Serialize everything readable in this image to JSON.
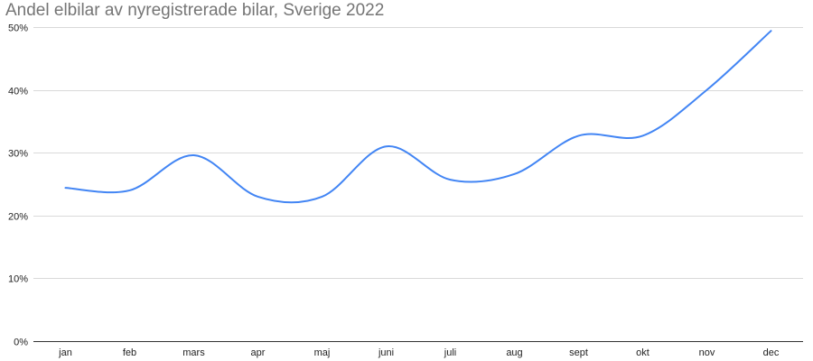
{
  "chart_data": {
    "type": "line",
    "title": "Andel elbilar av nyregistrerade bilar, Sverige 2022",
    "xlabel": "",
    "ylabel": "",
    "categories": [
      "jan",
      "feb",
      "mars",
      "apr",
      "maj",
      "juni",
      "juli",
      "aug",
      "sept",
      "okt",
      "nov",
      "dec"
    ],
    "series": [
      {
        "values": [
          24.4,
          24.0,
          29.6,
          23.0,
          23.0,
          31.0,
          25.7,
          26.6,
          32.7,
          32.7,
          40.0,
          49.4
        ]
      }
    ],
    "ylim": [
      0,
      50
    ],
    "yticks": [
      0,
      10,
      20,
      30,
      40,
      50
    ],
    "ytick_labels": [
      "0%",
      "10%",
      "20%",
      "30%",
      "40%",
      "50%"
    ],
    "grid": true,
    "smooth": true,
    "line_color": "#4285f4",
    "grid_color": "#d9d9d9",
    "axis_color": "#333333"
  }
}
